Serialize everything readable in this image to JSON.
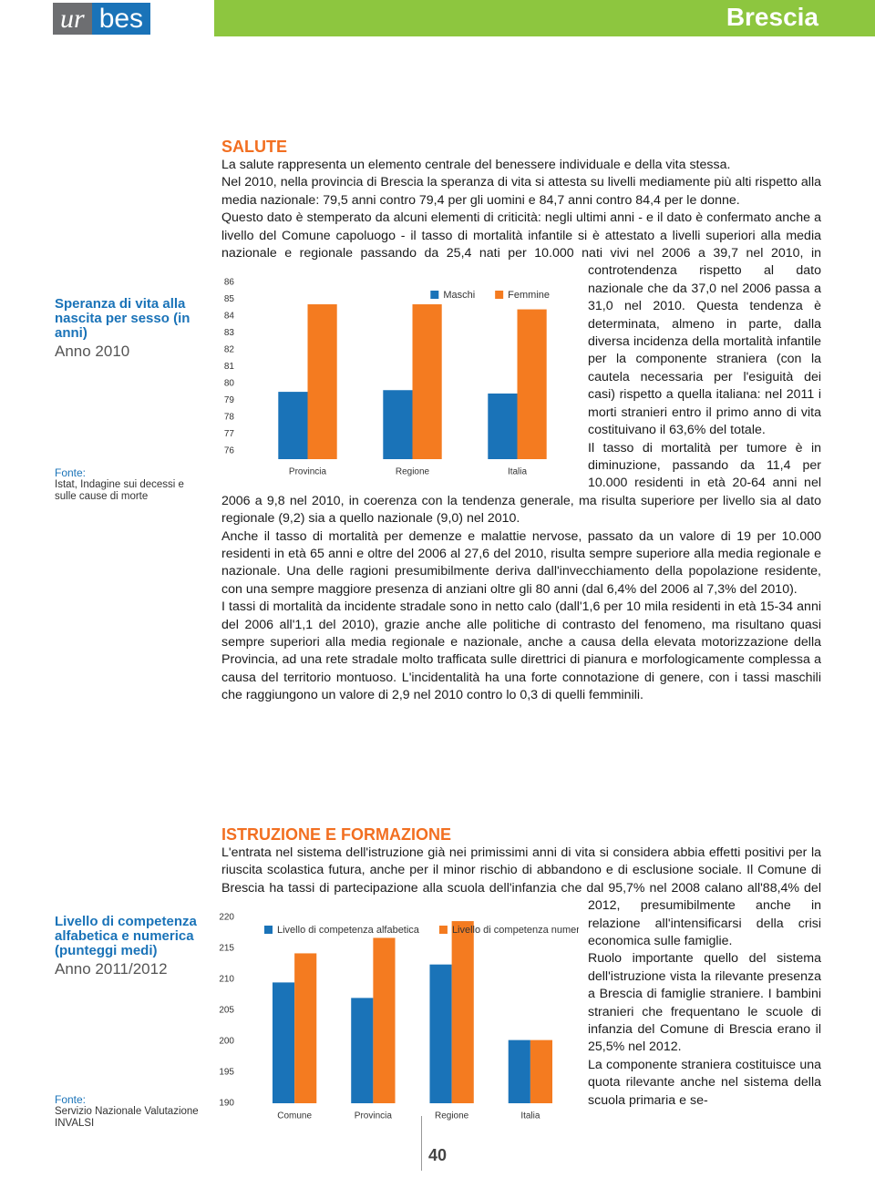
{
  "header": {
    "logo_a": "ur",
    "logo_b": "bes",
    "city": "Brescia"
  },
  "chart_data": [
    {
      "type": "bar",
      "title": "Speranza di vita alla nascita per sesso (in anni)",
      "subtitle": "Anno 2010",
      "source_label": "Fonte:",
      "source": "Istat, Indagine sui decessi e sulle cause di morte",
      "categories": [
        "Provincia",
        "Regione",
        "Italia"
      ],
      "series": [
        {
          "name": "Maschi",
          "color": "#1a73b8",
          "values": [
            79.5,
            79.6,
            79.4
          ]
        },
        {
          "name": "Femmine",
          "color": "#f47b20",
          "values": [
            84.7,
            84.7,
            84.4
          ]
        }
      ],
      "ylim": [
        75.5,
        86
      ],
      "yticks": [
        76,
        77,
        78,
        79,
        80,
        81,
        82,
        83,
        84,
        85,
        86
      ],
      "grid": false,
      "legend": "top-right"
    },
    {
      "type": "bar",
      "title": "Livello di competenza alfabetica e numerica (punteggi medi)",
      "subtitle": "Anno 2011/2012",
      "source_label": "Fonte:",
      "source": "Servizio Nazionale Valutazione INVALSI",
      "categories": [
        "Comune",
        "Provincia",
        "Regione",
        "Italia"
      ],
      "series": [
        {
          "name": "Livello di competenza alfabetica",
          "color": "#1a73b8",
          "values": [
            209.5,
            207,
            212.4,
            200.2
          ]
        },
        {
          "name": "Livello di competenza numerica",
          "color": "#f47b20",
          "values": [
            214.2,
            216.7,
            219.4,
            200.2
          ]
        }
      ],
      "ylim": [
        190,
        220
      ],
      "yticks": [
        190,
        195,
        200,
        205,
        210,
        215,
        220
      ],
      "grid": false,
      "legend": "top-left"
    }
  ],
  "sections": [
    {
      "heading": "SALUTE",
      "paragraphs": [
        [
          "La salute rappresenta un elemento centrale del benessere individuale e della vita stessa."
        ],
        [
          "Nel 2010, nella provincia di Brescia la speranza di vita si attesta su livelli mediamente più alti rispetto alla media nazionale: 79,5 anni contro 79,4 per gli uomini e 84,7 anni contro 84,4 per le donne."
        ],
        [
          "Questo dato è stemperato da alcuni elementi di criticità: negli ultimi anni - e il dato è confermato anche a livello del Comune capoluogo - il tasso di mortalità infantile si è attestato a livelli superiori alla media nazionale e regionale passando da 25,4 nati per 10.000 nati vivi",
          "nel 2006 a 39,7 nel 2010, in controtendenza rispetto al dato nazionale che da 37,0 nel 2006 passa a 31,0 nel 2010. Questa tendenza è determinata, almeno in parte, dalla diversa incidenza della mortalità infantile per la componente straniera (con la cautela necessaria per l'esiguità dei casi) rispetto a quella italiana: nel 2011 i morti stranieri entro il primo anno di vita costituivano il 63,6% del totale."
        ],
        [
          "Il tasso di mortalità per tumore è in diminuzione, passando da 11,4 per 10.000 residenti in età 20-64 anni nel 2006 a 9,8 nel 2010, in coerenza con la tendenza generale, ma risulta superiore per livello sia al dato regionale (9,2) sia a quello nazionale (9,0) nel 2010."
        ],
        [
          "Anche il tasso di mortalità per demenze e malattie nervose, passato da un valore di 19 per 10.000 residenti in età 65 anni e oltre del 2006 al 27,6 del 2010, risulta sempre superiore alla media regionale e nazionale. Una delle ragioni presumibilmente deriva dall'invecchiamento della popolazione residente, con una sempre maggiore presenza di anziani oltre gli 80 anni (dal 6,4% del 2006 al 7,3% del 2010)."
        ],
        [
          "I tassi di mortalità da incidente stradale sono in netto calo (dall'1,6 per 10 mila residenti in età 15-34 anni del 2006 all'1,1 del 2010), grazie anche alle politiche di contrasto del fenomeno, ma risultano quasi sempre superiori alla media regionale e nazionale, anche a causa della elevata motorizzazione della Provincia, ad una rete stradale molto trafficata sulle direttrici di pianura e morfologicamente complessa a causa del territorio montuoso. L'incidentalità ha una forte connotazione di genere, con i tassi maschili che raggiungono un valore di 2,9 nel 2010 contro lo 0,3 di quelli femminili."
        ]
      ]
    },
    {
      "heading": "ISTRUZIONE E FORMAZIONE",
      "paragraphs": [
        [
          "L'entrata nel sistema dell'istruzione già nei primissimi anni di vita si considera abbia effetti positivi per la riuscita scolastica futura, anche per il minor rischio di abbandono e di esclusione sociale. Il Comune di Brescia ha tassi di partecipazione alla scuola dell'infanzia che",
          "dal 95,7% nel 2008 calano all'88,4% del 2012, presumibilmente anche in relazione all'intensificarsi della crisi economica sulle famiglie."
        ],
        [
          "Ruolo importante quello del sistema dell'istruzione vista la rilevante presenza a Brescia di famiglie straniere. I bambini stranieri che frequentano le scuole di infanzia del Comune di Brescia erano il 25,5% nel 2012."
        ],
        [
          "La componente straniera costituisce una quota rilevante anche nel sistema della scuola primaria e se-"
        ]
      ]
    }
  ],
  "footer": {
    "page": "40"
  }
}
